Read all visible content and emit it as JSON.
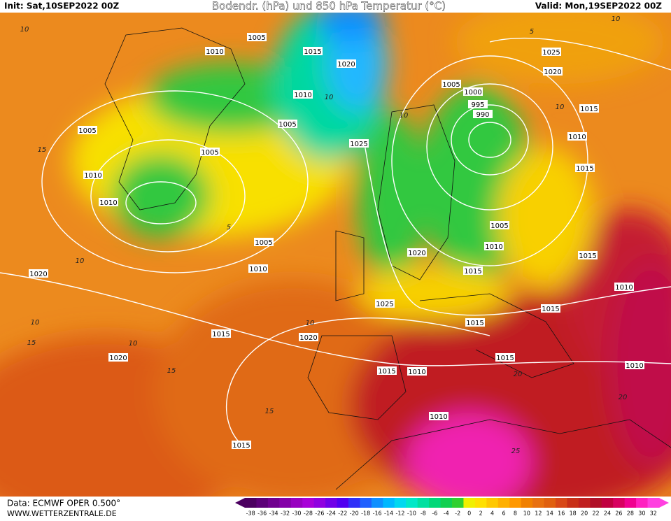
{
  "header": {
    "init": "Init: Sat,10SEP2022 00Z",
    "title": "Bodendr. (hPa) und 850 hPa Temperatur (°C)",
    "valid": "Valid: Mon,19SEP2022 00Z"
  },
  "footer": {
    "source": "Data: ECMWF OPER 0.500°",
    "url": "WWW.WETTERZENTRALE.DE"
  },
  "colorbar": {
    "ticks": [
      -38,
      -36,
      -34,
      -32,
      -30,
      -28,
      -26,
      -24,
      -22,
      -20,
      -18,
      -16,
      -14,
      -12,
      -10,
      -8,
      -6,
      -4,
      -2,
      0,
      2,
      4,
      6,
      8,
      10,
      12,
      14,
      16,
      18,
      20,
      22,
      24,
      26,
      28,
      30,
      32
    ],
    "colors": [
      "#4b0060",
      "#5c0078",
      "#70008f",
      "#8400a8",
      "#9800c0",
      "#a800d8",
      "#9000e0",
      "#7000e8",
      "#5000f0",
      "#3030f8",
      "#2060ff",
      "#1090ff",
      "#00b8ff",
      "#00d8f0",
      "#00e8c8",
      "#00e0a0",
      "#00d878",
      "#10d050",
      "#30d030",
      "#f0f000",
      "#ffe000",
      "#ffc800",
      "#ffb000",
      "#ff9800",
      "#f08000",
      "#e87010",
      "#e06010",
      "#d84818",
      "#c83018",
      "#c02020",
      "#b01028",
      "#c00040",
      "#d80060",
      "#f00090",
      "#ff20c0",
      "#ff40e0"
    ]
  },
  "map": {
    "isobar_labels": [
      "1010",
      "1005",
      "1015",
      "1020",
      "1010",
      "1005",
      "1005",
      "1005",
      "1010",
      "1010",
      "1025",
      "1005",
      "1000",
      "995",
      "990",
      "1025",
      "1020",
      "1015",
      "1010",
      "1015",
      "1005",
      "1010",
      "1015",
      "1020",
      "1015",
      "1005",
      "1010",
      "1020",
      "1025",
      "1015",
      "1010",
      "1015",
      "1015",
      "1020",
      "1020",
      "1015",
      "1010",
      "1015",
      "1010",
      "1010",
      "1015"
    ],
    "temperature_labels": [
      "10",
      "15",
      "10",
      "10",
      "15",
      "10",
      "15",
      "15",
      "5",
      "10",
      "10",
      "10",
      "10",
      "5",
      "10",
      "20",
      "20",
      "25"
    ]
  }
}
